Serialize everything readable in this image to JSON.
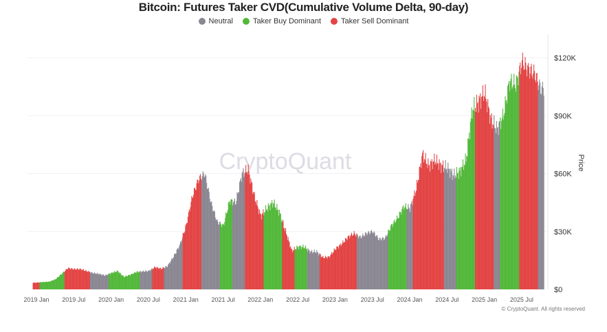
{
  "chart_data": {
    "type": "bar",
    "title": "Bitcoin: Futures Taker CVD(Cumulative Volume Delta, 90-day)",
    "ylabel": "Price",
    "ylim": [
      0,
      130000
    ],
    "yticks": [
      {
        "value": 0,
        "label": "$0"
      },
      {
        "value": 30000,
        "label": "$30K"
      },
      {
        "value": 60000,
        "label": "$60K"
      },
      {
        "value": 90000,
        "label": "$90K"
      },
      {
        "value": 120000,
        "label": "$120K"
      }
    ],
    "xticks": [
      "2019 Jan",
      "2019 Jul",
      "2020 Jan",
      "2020 Jul",
      "2021 Jan",
      "2021 Jul",
      "2022 Jan",
      "2022 Jul",
      "2023 Jan",
      "2023 Jul",
      "2024 Jan",
      "2024 Jul",
      "2025 Jan",
      "2025 Jul"
    ],
    "grid": true,
    "legend_position": "top",
    "legend": [
      {
        "key": "neutral",
        "name": "Neutral",
        "color": "#8a8792"
      },
      {
        "key": "buy",
        "name": "Taker Buy Dominant",
        "color": "#52b83a"
      },
      {
        "key": "sell",
        "name": "Taker Sell Dominant",
        "color": "#e34444"
      }
    ],
    "series": [
      [
        "2019-01",
        3500,
        "sell"
      ],
      [
        "2019-02",
        3800,
        "buy"
      ],
      [
        "2019-03",
        4000,
        "buy"
      ],
      [
        "2019-04",
        5200,
        "buy"
      ],
      [
        "2019-05",
        8000,
        "buy"
      ],
      [
        "2019-06",
        11000,
        "sell"
      ],
      [
        "2019-07",
        10500,
        "sell"
      ],
      [
        "2019-08",
        10500,
        "sell"
      ],
      [
        "2019-09",
        9500,
        "sell"
      ],
      [
        "2019-10",
        8500,
        "neutral"
      ],
      [
        "2019-11",
        8000,
        "neutral"
      ],
      [
        "2019-12",
        7200,
        "neutral"
      ],
      [
        "2020-01",
        8500,
        "buy"
      ],
      [
        "2020-02",
        9500,
        "buy"
      ],
      [
        "2020-03",
        6500,
        "buy"
      ],
      [
        "2020-04",
        7500,
        "buy"
      ],
      [
        "2020-05",
        9000,
        "buy"
      ],
      [
        "2020-06",
        9300,
        "neutral"
      ],
      [
        "2020-07",
        9500,
        "neutral"
      ],
      [
        "2020-08",
        11500,
        "sell"
      ],
      [
        "2020-09",
        10700,
        "sell"
      ],
      [
        "2020-10",
        12000,
        "neutral"
      ],
      [
        "2020-11",
        17000,
        "neutral"
      ],
      [
        "2020-12",
        23000,
        "neutral"
      ],
      [
        "2021-01",
        33000,
        "sell"
      ],
      [
        "2021-02",
        48000,
        "sell"
      ],
      [
        "2021-03",
        57000,
        "sell"
      ],
      [
        "2021-04",
        60000,
        "neutral"
      ],
      [
        "2021-05",
        45000,
        "neutral"
      ],
      [
        "2021-06",
        35000,
        "neutral"
      ],
      [
        "2021-07",
        33000,
        "buy"
      ],
      [
        "2021-08",
        46000,
        "buy"
      ],
      [
        "2021-09",
        45000,
        "neutral"
      ],
      [
        "2021-10",
        60000,
        "neutral"
      ],
      [
        "2021-11",
        62000,
        "sell"
      ],
      [
        "2021-12",
        48000,
        "sell"
      ],
      [
        "2022-01",
        38000,
        "sell"
      ],
      [
        "2022-02",
        42000,
        "buy"
      ],
      [
        "2022-03",
        45000,
        "buy"
      ],
      [
        "2022-04",
        40000,
        "buy"
      ],
      [
        "2022-05",
        30000,
        "sell"
      ],
      [
        "2022-06",
        20000,
        "sell"
      ],
      [
        "2022-07",
        22000,
        "buy"
      ],
      [
        "2022-08",
        22000,
        "buy"
      ],
      [
        "2022-09",
        19500,
        "neutral"
      ],
      [
        "2022-10",
        19500,
        "neutral"
      ],
      [
        "2022-11",
        16500,
        "sell"
      ],
      [
        "2022-12",
        16800,
        "sell"
      ],
      [
        "2023-01",
        21000,
        "sell"
      ],
      [
        "2023-02",
        23500,
        "sell"
      ],
      [
        "2023-03",
        27000,
        "sell"
      ],
      [
        "2023-04",
        29000,
        "sell"
      ],
      [
        "2023-05",
        27000,
        "neutral"
      ],
      [
        "2023-06",
        29000,
        "neutral"
      ],
      [
        "2023-07",
        30000,
        "neutral"
      ],
      [
        "2023-08",
        26000,
        "neutral"
      ],
      [
        "2023-09",
        26500,
        "neutral"
      ],
      [
        "2023-10",
        33000,
        "buy"
      ],
      [
        "2023-11",
        37000,
        "buy"
      ],
      [
        "2023-12",
        43000,
        "buy"
      ],
      [
        "2024-01",
        42000,
        "neutral"
      ],
      [
        "2024-02",
        52000,
        "sell"
      ],
      [
        "2024-03",
        70000,
        "sell"
      ],
      [
        "2024-04",
        64000,
        "sell"
      ],
      [
        "2024-05",
        67000,
        "sell"
      ],
      [
        "2024-06",
        64000,
        "sell"
      ],
      [
        "2024-07",
        63000,
        "neutral"
      ],
      [
        "2024-08",
        59000,
        "neutral"
      ],
      [
        "2024-09",
        61000,
        "buy"
      ],
      [
        "2024-10",
        67000,
        "buy"
      ],
      [
        "2024-11",
        93000,
        "buy"
      ],
      [
        "2024-12",
        97000,
        "sell"
      ],
      [
        "2025-01",
        102000,
        "sell"
      ],
      [
        "2025-02",
        88000,
        "sell"
      ],
      [
        "2025-03",
        83000,
        "neutral"
      ],
      [
        "2025-04",
        90000,
        "buy"
      ],
      [
        "2025-05",
        108000,
        "buy"
      ],
      [
        "2025-06",
        106000,
        "buy"
      ],
      [
        "2025-07",
        118000,
        "sell"
      ],
      [
        "2025-08",
        114000,
        "sell"
      ],
      [
        "2025-09",
        112000,
        "sell"
      ],
      [
        "2025-10",
        104000,
        "neutral"
      ]
    ]
  },
  "watermark": "CryptoQuant",
  "copyright": "© CryptoQuant. All rights reserved"
}
